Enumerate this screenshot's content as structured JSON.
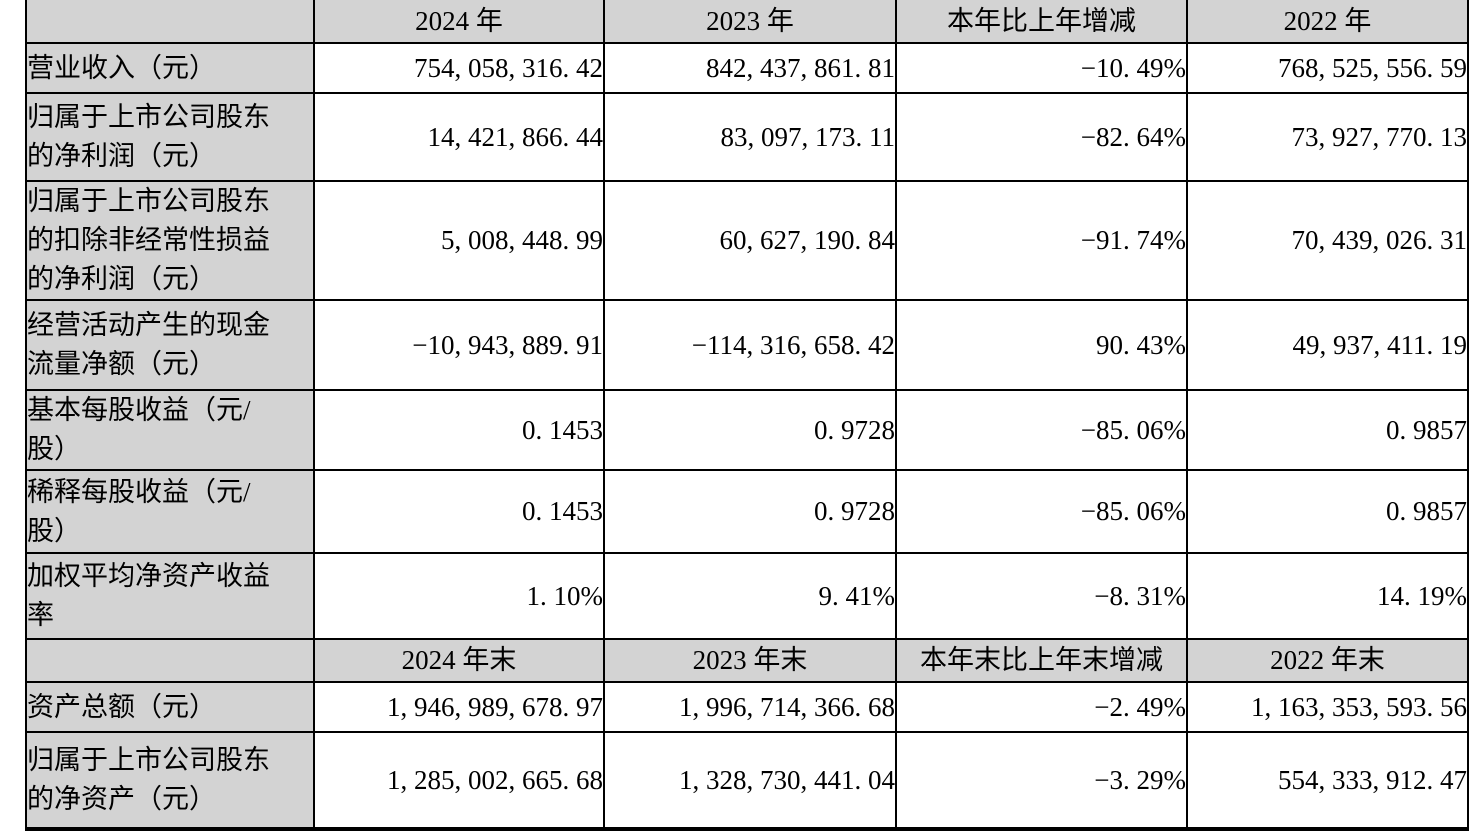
{
  "document": {
    "type": "financial-summary-table",
    "language": "zh-CN"
  },
  "colors": {
    "header_bg": "#d3d3d3",
    "label_bg": "#d3d3d3",
    "value_bg": "#ffffff",
    "border": "#000000",
    "text": "#000000"
  },
  "table": {
    "header_row_1": {
      "label": "",
      "cells": [
        "2024 年",
        "2023 年",
        "本年比上年增减",
        "2022 年"
      ]
    },
    "rows_section_1": [
      {
        "label_lines": [
          "营业收入（元）"
        ],
        "values": [
          "754,058,316.42",
          "842,437,861.81",
          "-10.49%",
          "768,525,556.59"
        ]
      },
      {
        "label_lines": [
          "归属于上市公司股东",
          "的净利润（元）"
        ],
        "values": [
          "14,421,866.44",
          "83,097,173.11",
          "-82.64%",
          "73,927,770.13"
        ]
      },
      {
        "label_lines": [
          "归属于上市公司股东",
          "的扣除非经常性损益",
          "的净利润（元）"
        ],
        "values": [
          "5,008,448.99",
          "60,627,190.84",
          "-91.74%",
          "70,439,026.31"
        ]
      },
      {
        "label_lines": [
          "经营活动产生的现金",
          "流量净额（元）"
        ],
        "values": [
          "-10,943,889.91",
          "-114,316,658.42",
          "90.43%",
          "49,937,411.19"
        ]
      },
      {
        "label_lines": [
          "基本每股收益（元/",
          "股）"
        ],
        "values": [
          "0.1453",
          "0.9728",
          "-85.06%",
          "0.9857"
        ]
      },
      {
        "label_lines": [
          "稀释每股收益（元/",
          "股）"
        ],
        "values": [
          "0.1453",
          "0.9728",
          "-85.06%",
          "0.9857"
        ]
      },
      {
        "label_lines": [
          "加权平均净资产收益",
          "率"
        ],
        "values": [
          "1.10%",
          "9.41%",
          "-8.31%",
          "14.19%"
        ]
      }
    ],
    "header_row_2": {
      "label": "",
      "cells": [
        "2024 年末",
        "2023 年末",
        "本年末比上年末增减",
        "2022 年末"
      ]
    },
    "rows_section_2": [
      {
        "label_lines": [
          "资产总额（元）"
        ],
        "values": [
          "1,946,989,678.97",
          "1,996,714,366.68",
          "-2.49%",
          "1,163,353,593.56"
        ]
      },
      {
        "label_lines": [
          "归属于上市公司股东",
          "的净资产（元）"
        ],
        "values": [
          "1,285,002,665.68",
          "1,328,730,441.04",
          "-3.29%",
          "554,333,912.47"
        ]
      }
    ]
  }
}
